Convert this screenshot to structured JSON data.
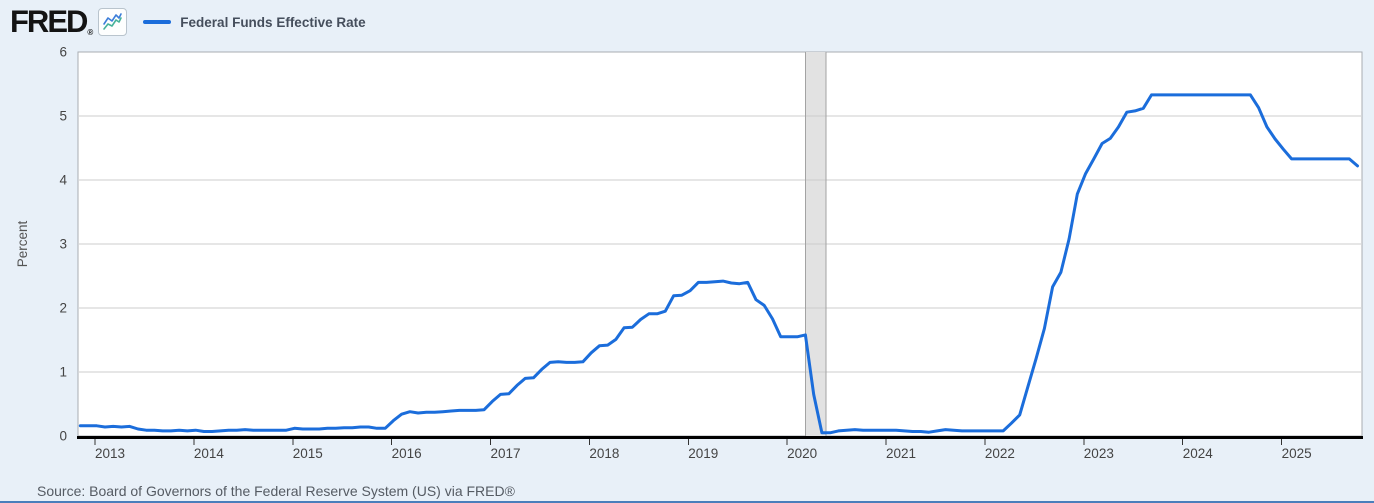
{
  "header": {
    "logo_text": "FRED",
    "registered_mark": "®",
    "legend": {
      "label": "Federal Funds Effective Rate",
      "color": "#1b6ddb"
    }
  },
  "source": {
    "text": "Source: Board of Governors of the Federal Reserve System (US) via FRED®"
  },
  "colors": {
    "page_background": "#e8f0f8",
    "plot_background": "#ffffff",
    "plot_border": "#a8adb2",
    "gridline": "#cccccc",
    "series_line": "#1b6ddb",
    "axis_line": "#000000",
    "tick_label": "#444444",
    "axis_title": "#555555",
    "recession_band_fill": "#e2e2e2",
    "recession_band_edge": "#a3a3a3",
    "bottom_rule": "#4a7ebb"
  },
  "chart_data": {
    "type": "line",
    "title": "Federal Funds Effective Rate",
    "xlabel": "",
    "ylabel": "Percent",
    "ylim": [
      0,
      6
    ],
    "yticks": [
      0,
      1,
      2,
      3,
      4,
      5,
      6
    ],
    "xticks": [
      2013,
      2014,
      2015,
      2016,
      2017,
      2018,
      2019,
      2020,
      2021,
      2022,
      2023,
      2024,
      2025
    ],
    "x_range": [
      2012.727,
      2025.712
    ],
    "grid": "horizontal",
    "legend_position": "top-left",
    "recession_band": {
      "start": "2020-02",
      "end": "2020-04"
    },
    "series": [
      {
        "name": "Federal Funds Effective Rate",
        "start": "2012-10",
        "frequency": "monthly",
        "units": "percent",
        "values": [
          0.16,
          0.16,
          0.16,
          0.14,
          0.15,
          0.14,
          0.15,
          0.11,
          0.09,
          0.09,
          0.08,
          0.08,
          0.09,
          0.08,
          0.09,
          0.07,
          0.07,
          0.08,
          0.09,
          0.09,
          0.1,
          0.09,
          0.09,
          0.09,
          0.09,
          0.09,
          0.12,
          0.11,
          0.11,
          0.11,
          0.12,
          0.12,
          0.13,
          0.13,
          0.14,
          0.14,
          0.12,
          0.12,
          0.24,
          0.34,
          0.38,
          0.36,
          0.37,
          0.37,
          0.38,
          0.39,
          0.4,
          0.4,
          0.4,
          0.41,
          0.54,
          0.65,
          0.66,
          0.79,
          0.9,
          0.91,
          1.04,
          1.15,
          1.16,
          1.15,
          1.15,
          1.16,
          1.3,
          1.41,
          1.42,
          1.51,
          1.69,
          1.7,
          1.82,
          1.91,
          1.91,
          1.95,
          2.19,
          2.2,
          2.27,
          2.4,
          2.4,
          2.41,
          2.42,
          2.39,
          2.38,
          2.4,
          2.13,
          2.04,
          1.83,
          1.55,
          1.55,
          1.55,
          1.58,
          0.65,
          0.05,
          0.05,
          0.08,
          0.09,
          0.1,
          0.09,
          0.09,
          0.09,
          0.09,
          0.09,
          0.08,
          0.07,
          0.07,
          0.06,
          0.08,
          0.1,
          0.09,
          0.08,
          0.08,
          0.08,
          0.08,
          0.08,
          0.08,
          0.2,
          0.33,
          0.77,
          1.21,
          1.68,
          2.33,
          2.56,
          3.08,
          3.78,
          4.1,
          4.33,
          4.57,
          4.65,
          4.83,
          5.06,
          5.08,
          5.12,
          5.33,
          5.33,
          5.33,
          5.33,
          5.33,
          5.33,
          5.33,
          5.33,
          5.33,
          5.33,
          5.33,
          5.33,
          5.33,
          5.13,
          4.83,
          4.64,
          4.48,
          4.33,
          4.33,
          4.33,
          4.33,
          4.33,
          4.33,
          4.33,
          4.33,
          4.22
        ]
      }
    ]
  }
}
